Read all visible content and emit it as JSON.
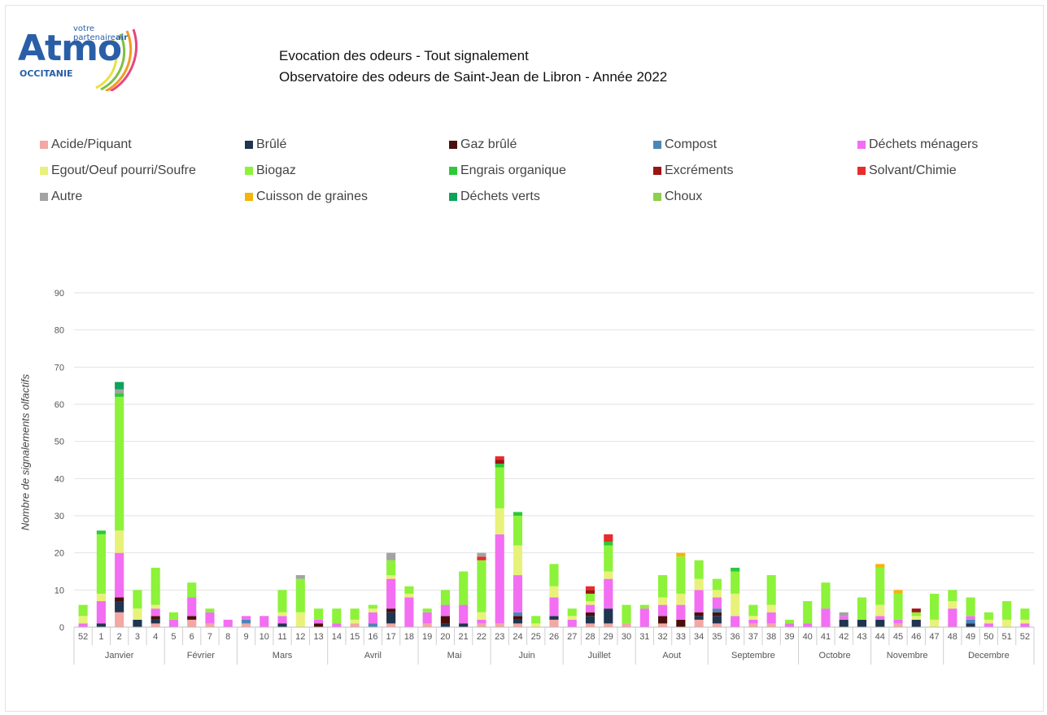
{
  "logo": {
    "tagline_start": "votre partenaire",
    "tagline_bold": "air",
    "brand": "Atmo",
    "region": "OCCITANIE"
  },
  "titles": {
    "line1": "Evocation des odeurs - Tout signalement",
    "line2": "Observatoire des odeurs de Saint-Jean de Libron -  Année 2022"
  },
  "chart_data": {
    "type": "bar",
    "stacked": true,
    "ylabel": "Nombre de signalements olfactifs",
    "ylim": [
      0,
      90
    ],
    "yticks": [
      0,
      10,
      20,
      30,
      40,
      50,
      60,
      70,
      80,
      90
    ],
    "legend_placement": "top",
    "grid": true,
    "categories": [
      "52",
      "1",
      "2",
      "3",
      "4",
      "5",
      "6",
      "7",
      "8",
      "9",
      "10",
      "11",
      "12",
      "13",
      "14",
      "15",
      "16",
      "17",
      "18",
      "19",
      "20",
      "21",
      "22",
      "23",
      "24",
      "25",
      "26",
      "27",
      "28",
      "29",
      "30",
      "31",
      "32",
      "33",
      "34",
      "35",
      "36",
      "37",
      "38",
      "39",
      "40",
      "41",
      "42",
      "43",
      "44",
      "45",
      "46",
      "47",
      "48",
      "49",
      "50",
      "51",
      "52"
    ],
    "months": [
      {
        "name": "Janvier",
        "start": 0,
        "end": 4
      },
      {
        "name": "Février",
        "start": 5,
        "end": 8
      },
      {
        "name": "Mars",
        "start": 9,
        "end": 13
      },
      {
        "name": "Avril",
        "start": 14,
        "end": 18
      },
      {
        "name": "Mai",
        "start": 19,
        "end": 22
      },
      {
        "name": "Juin",
        "start": 23,
        "end": 26
      },
      {
        "name": "Juillet",
        "start": 27,
        "end": 30
      },
      {
        "name": "Aout",
        "start": 31,
        "end": 34
      },
      {
        "name": "Septembre",
        "start": 35,
        "end": 39
      },
      {
        "name": "Octobre",
        "start": 40,
        "end": 43
      },
      {
        "name": "Novembre",
        "start": 44,
        "end": 47
      },
      {
        "name": "Decembre",
        "start": 48,
        "end": 52
      }
    ],
    "series": [
      {
        "name": "Acide/Piquant",
        "color": "#f4a7a3",
        "values": [
          0,
          0,
          4,
          0,
          1,
          0,
          2,
          1,
          0,
          1,
          0,
          0,
          0,
          0,
          0,
          1,
          0,
          1,
          0,
          1,
          0,
          0,
          1,
          1,
          1,
          0,
          2,
          0,
          1,
          1,
          1,
          0,
          1,
          0,
          2,
          1,
          0,
          1,
          1,
          0,
          0,
          0,
          0,
          0,
          0,
          1,
          0,
          0,
          0,
          0,
          0,
          0,
          0
        ]
      },
      {
        "name": "Brûlé",
        "color": "#1f3550",
        "values": [
          0,
          1,
          3,
          2,
          1,
          0,
          0,
          0,
          0,
          0,
          0,
          1,
          0,
          0,
          0,
          0,
          0,
          3,
          0,
          0,
          1,
          1,
          0,
          0,
          1,
          0,
          1,
          0,
          2,
          4,
          0,
          0,
          0,
          0,
          1,
          2,
          0,
          0,
          0,
          0,
          0,
          0,
          2,
          2,
          2,
          0,
          2,
          0,
          0,
          1,
          0,
          0,
          0
        ]
      },
      {
        "name": "Gaz brûlé",
        "color": "#4a0f0a",
        "values": [
          0,
          0,
          1,
          0,
          1,
          0,
          1,
          0,
          0,
          0,
          0,
          0,
          0,
          1,
          0,
          0,
          0,
          1,
          0,
          0,
          2,
          0,
          0,
          0,
          1,
          0,
          0,
          0,
          1,
          0,
          0,
          0,
          2,
          2,
          1,
          1,
          0,
          0,
          0,
          0,
          0,
          0,
          0,
          0,
          0,
          0,
          0,
          0,
          0,
          0,
          0,
          0,
          0
        ]
      },
      {
        "name": "Compost",
        "color": "#4a86b8",
        "values": [
          0,
          0,
          0,
          0,
          0,
          0,
          0,
          0,
          0,
          1,
          0,
          0,
          0,
          0,
          0,
          0,
          1,
          0,
          0,
          0,
          0,
          0,
          0,
          0,
          1,
          0,
          0,
          0,
          0,
          0,
          0,
          0,
          0,
          0,
          0,
          1,
          0,
          0,
          0,
          0,
          0,
          0,
          0,
          0,
          0,
          0,
          0,
          0,
          0,
          1,
          0,
          0,
          0
        ]
      },
      {
        "name": "Déchets ménagers",
        "color": "#f36ef2",
        "values": [
          1,
          6,
          12,
          0,
          2,
          2,
          5,
          3,
          2,
          1,
          3,
          2,
          0,
          1,
          1,
          0,
          3,
          8,
          8,
          3,
          3,
          5,
          1,
          24,
          10,
          0,
          5,
          2,
          2,
          8,
          0,
          5,
          3,
          4,
          6,
          3,
          3,
          1,
          3,
          1,
          1,
          5,
          1,
          0,
          1,
          1,
          0,
          0,
          5,
          1,
          1,
          0,
          1
        ]
      },
      {
        "name": "Egout/Oeuf pourri/Soufre",
        "color": "#e8f27a",
        "values": [
          2,
          2,
          6,
          3,
          1,
          0,
          0,
          0,
          0,
          0,
          0,
          1,
          4,
          0,
          0,
          1,
          1,
          1,
          1,
          0,
          0,
          0,
          2,
          7,
          8,
          1,
          3,
          1,
          1,
          2,
          0,
          0,
          2,
          3,
          3,
          2,
          6,
          1,
          2,
          0,
          0,
          0,
          0,
          0,
          3,
          0,
          1,
          2,
          2,
          0,
          1,
          2,
          1
        ]
      },
      {
        "name": "Biogaz",
        "color": "#8df23a",
        "values": [
          3,
          16,
          36,
          5,
          10,
          2,
          4,
          1,
          0,
          0,
          0,
          6,
          9,
          3,
          4,
          3,
          1,
          4,
          2,
          1,
          4,
          9,
          14,
          11,
          8,
          2,
          6,
          2,
          2,
          7,
          5,
          1,
          6,
          10,
          5,
          3,
          6,
          3,
          8,
          1,
          6,
          7,
          0,
          6,
          10,
          7,
          1,
          7,
          3,
          5,
          2,
          5,
          3
        ]
      },
      {
        "name": "Engrais organique",
        "color": "#2ec83a",
        "values": [
          0,
          1,
          1,
          0,
          0,
          0,
          0,
          0,
          0,
          0,
          0,
          0,
          0,
          0,
          0,
          0,
          0,
          0,
          0,
          0,
          0,
          0,
          0,
          1,
          1,
          0,
          0,
          0,
          0,
          1,
          0,
          0,
          0,
          0,
          0,
          0,
          1,
          0,
          0,
          0,
          0,
          0,
          0,
          0,
          0,
          0,
          0,
          0,
          0,
          0,
          0,
          0,
          0
        ]
      },
      {
        "name": "Excréments",
        "color": "#9c1414",
        "values": [
          0,
          0,
          0,
          0,
          0,
          0,
          0,
          0,
          0,
          0,
          0,
          0,
          0,
          0,
          0,
          0,
          0,
          0,
          0,
          0,
          0,
          0,
          0,
          1,
          0,
          0,
          0,
          0,
          1,
          0,
          0,
          0,
          0,
          0,
          0,
          0,
          0,
          0,
          0,
          0,
          0,
          0,
          0,
          0,
          0,
          0,
          1,
          0,
          0,
          0,
          0,
          0,
          0
        ]
      },
      {
        "name": "Solvant/Chimie",
        "color": "#e82b2b",
        "values": [
          0,
          0,
          0,
          0,
          0,
          0,
          0,
          0,
          0,
          0,
          0,
          0,
          0,
          0,
          0,
          0,
          0,
          0,
          0,
          0,
          0,
          0,
          1,
          1,
          0,
          0,
          0,
          0,
          1,
          2,
          0,
          0,
          0,
          0,
          0,
          0,
          0,
          0,
          0,
          0,
          0,
          0,
          0,
          0,
          0,
          0,
          0,
          0,
          0,
          0,
          0,
          0,
          0
        ]
      },
      {
        "name": "Autre",
        "color": "#a3a3a3",
        "values": [
          0,
          0,
          1,
          0,
          0,
          0,
          0,
          0,
          0,
          0,
          0,
          0,
          1,
          0,
          0,
          0,
          0,
          2,
          0,
          0,
          0,
          0,
          1,
          0,
          0,
          0,
          0,
          0,
          0,
          0,
          0,
          0,
          0,
          0,
          0,
          0,
          0,
          0,
          0,
          0,
          0,
          0,
          1,
          0,
          0,
          0,
          0,
          0,
          0,
          0,
          0,
          0,
          0
        ]
      },
      {
        "name": "Cuisson de graines",
        "color": "#f5b40a",
        "values": [
          0,
          0,
          0,
          0,
          0,
          0,
          0,
          0,
          0,
          0,
          0,
          0,
          0,
          0,
          0,
          0,
          0,
          0,
          0,
          0,
          0,
          0,
          0,
          0,
          0,
          0,
          0,
          0,
          0,
          0,
          0,
          0,
          0,
          1,
          0,
          0,
          0,
          0,
          0,
          0,
          0,
          0,
          0,
          0,
          1,
          1,
          0,
          0,
          0,
          0,
          0,
          0,
          0
        ]
      },
      {
        "name": "Déchets verts",
        "color": "#0da35a",
        "values": [
          0,
          0,
          2,
          0,
          0,
          0,
          0,
          0,
          0,
          0,
          0,
          0,
          0,
          0,
          0,
          0,
          0,
          0,
          0,
          0,
          0,
          0,
          0,
          0,
          0,
          0,
          0,
          0,
          0,
          0,
          0,
          0,
          0,
          0,
          0,
          0,
          0,
          0,
          0,
          0,
          0,
          0,
          0,
          0,
          0,
          0,
          0,
          0,
          0,
          0,
          0,
          0,
          0
        ]
      },
      {
        "name": "Choux",
        "color": "#8fcf4e",
        "values": [
          0,
          0,
          0,
          0,
          0,
          0,
          0,
          0,
          0,
          0,
          0,
          0,
          0,
          0,
          0,
          0,
          0,
          0,
          0,
          0,
          0,
          0,
          0,
          0,
          0,
          0,
          0,
          0,
          0,
          0,
          0,
          0,
          0,
          0,
          0,
          0,
          0,
          0,
          0,
          0,
          0,
          0,
          0,
          0,
          0,
          0,
          0,
          0,
          0,
          0,
          0,
          0,
          0
        ]
      }
    ]
  }
}
